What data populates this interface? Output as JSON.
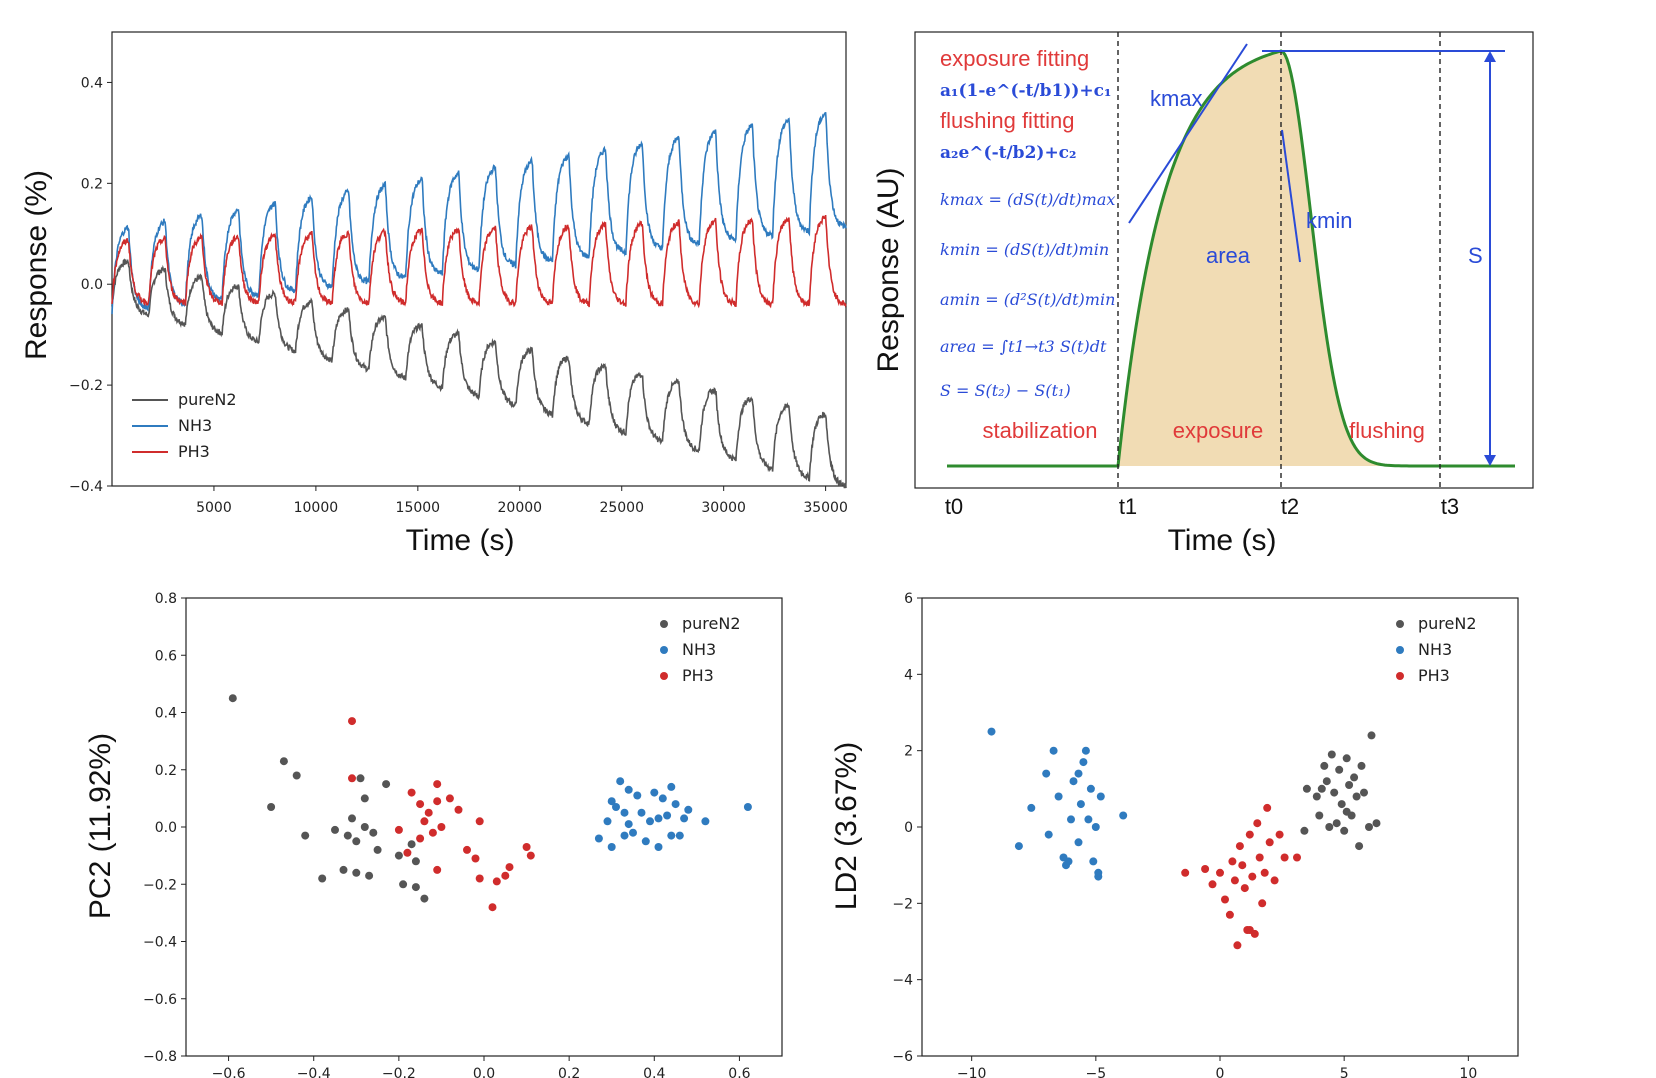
{
  "chart_data": [
    {
      "type": "line",
      "xlabel": "Time (s)",
      "ylabel": "Response (%)",
      "xlim": [
        0,
        36000
      ],
      "ylim": [
        -0.4,
        0.5
      ],
      "xticks": [
        "5000",
        "10000",
        "15000",
        "20000",
        "25000",
        "30000",
        "35000"
      ],
      "yticks": [
        "−0.4",
        "−0.2",
        "0.0",
        "0.2",
        "0.4"
      ],
      "legend_position": "lower-left",
      "cycle_period_s": 1800,
      "series": [
        {
          "name": "pureN2",
          "color": "#555555",
          "baseline_start": 0.0,
          "baseline_end": -0.34,
          "amplitude": 0.14
        },
        {
          "name": "NH3",
          "color": "#2f7bbf",
          "baseline_start": 0.02,
          "baseline_end": 0.22,
          "amplitude": 0.24
        },
        {
          "name": "PH3",
          "color": "#d02c2c",
          "baseline_start": 0.02,
          "baseline_end": 0.04,
          "amplitude": 0.18
        }
      ]
    },
    {
      "type": "line",
      "xlabel": "Time (s)",
      "ylabel": "Response (AU)",
      "xticks": [
        "t0",
        "t1",
        "t2",
        "t3"
      ],
      "phases": [
        "stabilization",
        "exposure",
        "flushing"
      ],
      "annotations": {
        "exposure_fit_title": "exposure fitting",
        "exposure_fit_formula": "a₁(1-e^(-t/b1))+c₁",
        "flushing_fit_title": "flushing fitting",
        "flushing_fit_formula": "a₂e^(-t/b2)+c₂",
        "kmax_def": "kmax = (dS(t)/dt)max",
        "kmin_def": "kmin = (dS(t)/dt)min",
        "amin_def": "amin = (d²S(t)/dt)min",
        "area_def": "area = ∫t1→t3 S(t)dt",
        "s_def": "S = S(t₂) − S(t₁)",
        "kmax_label": "kmax",
        "kmin_label": "kmin",
        "area_label": "area",
        "s_label": "S"
      },
      "colors": {
        "curve": "#2e8b2e",
        "fill": "#f1dcb4",
        "annotation": "#2a4bd7",
        "phase": "#e03a3a"
      }
    },
    {
      "type": "scatter",
      "xlabel": "",
      "ylabel": "PC2 (11.92%)",
      "xlim": [
        -0.7,
        0.7
      ],
      "ylim": [
        -0.8,
        0.8
      ],
      "xticks": [
        "−0.6",
        "−0.4",
        "−0.2",
        "0.0",
        "0.2",
        "0.4",
        "0.6"
      ],
      "yticks": [
        "−0.8",
        "−0.6",
        "−0.4",
        "−0.2",
        "0.0",
        "0.2",
        "0.4",
        "0.6",
        "0.8"
      ],
      "legend_position": "top-right",
      "series": [
        {
          "name": "pureN2",
          "color": "#555555",
          "points": [
            [
              -0.59,
              0.45
            ],
            [
              -0.47,
              0.23
            ],
            [
              -0.44,
              0.18
            ],
            [
              -0.5,
              0.07
            ],
            [
              -0.38,
              -0.18
            ],
            [
              -0.35,
              -0.01
            ],
            [
              -0.32,
              -0.03
            ],
            [
              -0.31,
              0.03
            ],
            [
              -0.29,
              0.17
            ],
            [
              -0.28,
              0.0
            ],
            [
              -0.27,
              -0.17
            ],
            [
              -0.3,
              -0.05
            ],
            [
              -0.26,
              -0.02
            ],
            [
              -0.23,
              0.15
            ],
            [
              -0.25,
              -0.08
            ],
            [
              -0.2,
              -0.1
            ],
            [
              -0.17,
              -0.06
            ],
            [
              -0.16,
              -0.21
            ],
            [
              -0.14,
              -0.25
            ],
            [
              -0.42,
              -0.03
            ],
            [
              -0.33,
              -0.15
            ],
            [
              -0.3,
              -0.16
            ],
            [
              -0.28,
              0.1
            ],
            [
              -0.19,
              -0.2
            ],
            [
              -0.16,
              -0.12
            ]
          ]
        },
        {
          "name": "NH3",
          "color": "#2f7bbf",
          "points": [
            [
              0.27,
              -0.04
            ],
            [
              0.29,
              0.02
            ],
            [
              0.3,
              0.09
            ],
            [
              0.3,
              -0.07
            ],
            [
              0.32,
              0.16
            ],
            [
              0.33,
              0.05
            ],
            [
              0.34,
              0.01
            ],
            [
              0.34,
              0.13
            ],
            [
              0.35,
              -0.02
            ],
            [
              0.36,
              0.11
            ],
            [
              0.37,
              0.05
            ],
            [
              0.38,
              -0.05
            ],
            [
              0.39,
              0.02
            ],
            [
              0.4,
              0.12
            ],
            [
              0.41,
              0.03
            ],
            [
              0.41,
              -0.07
            ],
            [
              0.42,
              0.1
            ],
            [
              0.43,
              0.04
            ],
            [
              0.44,
              -0.03
            ],
            [
              0.44,
              0.14
            ],
            [
              0.45,
              0.08
            ],
            [
              0.46,
              -0.03
            ],
            [
              0.47,
              0.03
            ],
            [
              0.48,
              0.06
            ],
            [
              0.52,
              0.02
            ],
            [
              0.62,
              0.07
            ],
            [
              0.31,
              0.07
            ],
            [
              0.33,
              -0.03
            ]
          ]
        },
        {
          "name": "PH3",
          "color": "#d02c2c",
          "points": [
            [
              -0.31,
              0.37
            ],
            [
              -0.31,
              0.17
            ],
            [
              -0.2,
              -0.01
            ],
            [
              -0.17,
              0.12
            ],
            [
              -0.15,
              0.08
            ],
            [
              -0.14,
              0.02
            ],
            [
              -0.13,
              0.05
            ],
            [
              -0.12,
              -0.02
            ],
            [
              -0.11,
              0.15
            ],
            [
              -0.11,
              0.09
            ],
            [
              -0.11,
              -0.15
            ],
            [
              -0.1,
              0.0
            ],
            [
              -0.08,
              0.1
            ],
            [
              -0.06,
              0.06
            ],
            [
              -0.04,
              -0.08
            ],
            [
              -0.02,
              -0.11
            ],
            [
              -0.01,
              -0.18
            ],
            [
              -0.01,
              0.02
            ],
            [
              0.02,
              -0.28
            ],
            [
              0.03,
              -0.19
            ],
            [
              0.05,
              -0.17
            ],
            [
              0.06,
              -0.14
            ],
            [
              0.1,
              -0.07
            ],
            [
              0.11,
              -0.1
            ],
            [
              -0.18,
              -0.09
            ],
            [
              -0.15,
              -0.04
            ]
          ]
        }
      ]
    },
    {
      "type": "scatter",
      "xlabel": "",
      "ylabel": "LD2 (3.67%)",
      "xlim": [
        -12,
        12
      ],
      "ylim": [
        -6,
        6
      ],
      "xticks": [
        "−10",
        "−5",
        "0",
        "5",
        "10"
      ],
      "yticks": [
        "−6",
        "−4",
        "−2",
        "0",
        "2",
        "4",
        "6"
      ],
      "legend_position": "top-right",
      "series": [
        {
          "name": "pureN2",
          "color": "#555555",
          "points": [
            [
              3.4,
              -0.1
            ],
            [
              3.5,
              1.0
            ],
            [
              3.9,
              0.8
            ],
            [
              4.0,
              0.3
            ],
            [
              4.2,
              1.6
            ],
            [
              4.3,
              1.2
            ],
            [
              4.5,
              1.9
            ],
            [
              4.6,
              0.9
            ],
            [
              4.7,
              0.1
            ],
            [
              4.8,
              1.5
            ],
            [
              4.9,
              0.6
            ],
            [
              5.0,
              -0.1
            ],
            [
              5.1,
              1.8
            ],
            [
              5.2,
              1.1
            ],
            [
              5.3,
              0.3
            ],
            [
              5.4,
              1.3
            ],
            [
              5.5,
              0.8
            ],
            [
              5.6,
              -0.5
            ],
            [
              5.7,
              1.6
            ],
            [
              5.8,
              0.9
            ],
            [
              6.0,
              0.0
            ],
            [
              6.1,
              2.4
            ],
            [
              6.3,
              0.1
            ],
            [
              4.4,
              0.0
            ],
            [
              5.1,
              0.4
            ],
            [
              4.1,
              1.0
            ]
          ]
        },
        {
          "name": "NH3",
          "color": "#2f7bbf",
          "points": [
            [
              -9.2,
              2.5
            ],
            [
              -8.1,
              -0.5
            ],
            [
              -7.6,
              0.5
            ],
            [
              -7.0,
              1.4
            ],
            [
              -6.9,
              -0.2
            ],
            [
              -6.7,
              2.0
            ],
            [
              -6.5,
              0.8
            ],
            [
              -6.3,
              -0.8
            ],
            [
              -6.2,
              -1.0
            ],
            [
              -6.0,
              0.2
            ],
            [
              -5.9,
              1.2
            ],
            [
              -5.7,
              1.4
            ],
            [
              -5.6,
              0.6
            ],
            [
              -5.5,
              1.7
            ],
            [
              -5.4,
              2.0
            ],
            [
              -5.3,
              0.2
            ],
            [
              -5.2,
              1.0
            ],
            [
              -5.1,
              -0.9
            ],
            [
              -5.0,
              0.0
            ],
            [
              -4.9,
              -1.3
            ],
            [
              -4.8,
              0.8
            ],
            [
              -4.9,
              -1.2
            ],
            [
              -3.9,
              0.3
            ],
            [
              -6.1,
              -0.9
            ],
            [
              -5.7,
              -0.4
            ]
          ]
        },
        {
          "name": "PH3",
          "color": "#d02c2c",
          "points": [
            [
              -1.4,
              -1.2
            ],
            [
              -0.6,
              -1.1
            ],
            [
              -0.3,
              -1.5
            ],
            [
              0.0,
              -1.2
            ],
            [
              0.2,
              -1.9
            ],
            [
              0.4,
              -2.3
            ],
            [
              0.5,
              -0.9
            ],
            [
              0.6,
              -1.4
            ],
            [
              0.7,
              -3.1
            ],
            [
              0.8,
              -0.5
            ],
            [
              0.9,
              -1.0
            ],
            [
              1.0,
              -1.6
            ],
            [
              1.1,
              -2.7
            ],
            [
              1.2,
              -0.2
            ],
            [
              1.3,
              -1.3
            ],
            [
              1.4,
              -2.8
            ],
            [
              1.5,
              0.1
            ],
            [
              1.6,
              -0.8
            ],
            [
              1.7,
              -2.0
            ],
            [
              1.8,
              -1.2
            ],
            [
              1.9,
              0.5
            ],
            [
              2.0,
              -0.4
            ],
            [
              2.2,
              -1.4
            ],
            [
              2.4,
              -0.2
            ],
            [
              2.6,
              -0.8
            ],
            [
              1.2,
              -2.7
            ],
            [
              3.1,
              -0.8
            ]
          ]
        }
      ]
    }
  ]
}
